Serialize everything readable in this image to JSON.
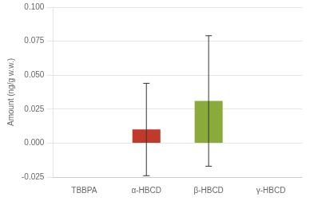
{
  "chart_data": {
    "type": "bar",
    "categories": [
      "TBBPA",
      "α-HBCD",
      "β-HBCD",
      "γ-HBCD"
    ],
    "values": [
      null,
      0.01,
      0.031,
      null
    ],
    "errors": [
      null,
      0.034,
      0.048,
      null
    ],
    "colors": [
      "#c0392b",
      "#c0392b",
      "#8aab3c",
      "#8aab3c"
    ],
    "ylabel": "Amount (ng/g w.w.)",
    "ylim": [
      -0.025,
      0.1
    ],
    "yticks": [
      -0.025,
      {
        "value": 0.0,
        "label": "0.000"
      },
      0.025,
      {
        "value": 0.05,
        "label": "0.050"
      },
      0.075,
      {
        "value": 0.1,
        "label": "0.100"
      }
    ],
    "grid": true
  }
}
